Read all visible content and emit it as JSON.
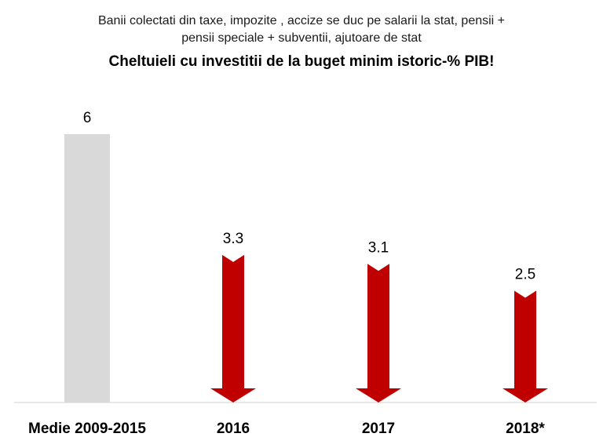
{
  "subtitle_lines": [
    "Banii colectati din taxe, impozite , accize se duc pe salarii la stat, pensii +",
    "pensii speciale + subventii, ajutoare de stat"
  ],
  "chart_data": {
    "type": "bar",
    "title": "Cheltuieli cu investitii de  la buget minim istoric-% PIB!",
    "categories": [
      "Medie 2009-2015",
      "2016",
      "2017",
      "2018*"
    ],
    "values": [
      6,
      3.3,
      3.1,
      2.5
    ],
    "value_labels": [
      "6",
      "3.3",
      "3.1",
      "2.5"
    ],
    "styles": [
      "bar",
      "arrow",
      "arrow",
      "arrow"
    ],
    "xlabel": "",
    "ylabel": "",
    "ylim": [
      0,
      6
    ],
    "grid": false,
    "colors": {
      "bar": "#d9d9d9",
      "arrow": "#c00000",
      "axis": "#d0d0d0",
      "text": "#000000"
    }
  }
}
